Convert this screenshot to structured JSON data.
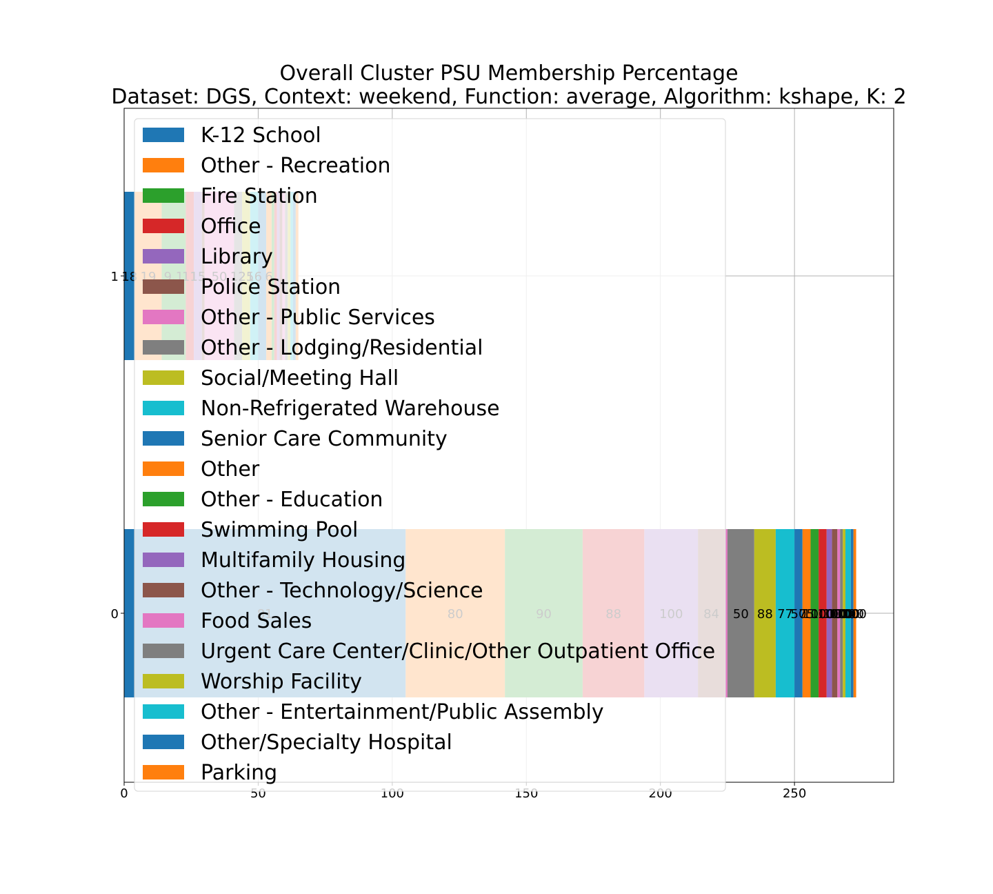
{
  "chart_data": {
    "type": "bar",
    "orientation": "horizontal",
    "stacked": true,
    "title": "Overall Cluster  PSU Membership Percentage",
    "subtitle": "Dataset: DGS, Context: weekend, Function: average, Algorithm: kshape, K: 2",
    "xlim": [
      0,
      287
    ],
    "xticks": [
      0,
      50,
      100,
      150,
      200,
      250
    ],
    "yticks": [
      0,
      1
    ],
    "grid": true,
    "legend_position": "upper-left",
    "palette": [
      "#1f77b4",
      "#ff7f0e",
      "#2ca02c",
      "#d62728",
      "#9467bd",
      "#8c564b",
      "#e377c2",
      "#7f7f7f",
      "#bcbd22",
      "#17becf"
    ],
    "categories": [
      "K-12 School",
      "Other - Recreation",
      "Fire Station",
      "Office",
      "Library",
      "Police Station",
      "Other - Public Services",
      "Other - Lodging/Residential",
      "Social/Meeting Hall",
      "Non-Refrigerated Warehouse",
      "Senior Care Community",
      "Other",
      "Other - Education",
      "Swimming Pool",
      "Multifamily Housing",
      "Other - Technology/Science",
      "Food Sales",
      "Urgent Care Center/Clinic/Other Outpatient Office",
      "Worship Facility",
      "Other - Entertainment/Public Assembly",
      "Other/Specialty Hospital",
      "Parking"
    ],
    "clusters": [
      {
        "cluster": "0",
        "widths": [
          105,
          37,
          29,
          23,
          20,
          10,
          1,
          10,
          8,
          7,
          3,
          3,
          3,
          3,
          2,
          2,
          1,
          1,
          1,
          2,
          1,
          1
        ],
        "labels": [
          "81",
          "80",
          "90",
          "88",
          "100",
          "84",
          "",
          "50",
          "88",
          "77",
          "50",
          "75",
          "100",
          "100",
          "100",
          "100",
          "100",
          "100",
          "100",
          "100",
          "100",
          "100"
        ]
      },
      {
        "cluster": "1",
        "widths": [
          4,
          10,
          9,
          3,
          3,
          1,
          11,
          3,
          3,
          3,
          3,
          2,
          1,
          1,
          1,
          1,
          1,
          1,
          1,
          1,
          1,
          1
        ],
        "labels": [
          "18",
          "19",
          "9.1",
          "11",
          "15",
          "",
          "50",
          "12",
          "25",
          "16",
          "",
          "6",
          "",
          "",
          "",
          "",
          "",
          "",
          "",
          "",
          "",
          ""
        ]
      }
    ]
  }
}
